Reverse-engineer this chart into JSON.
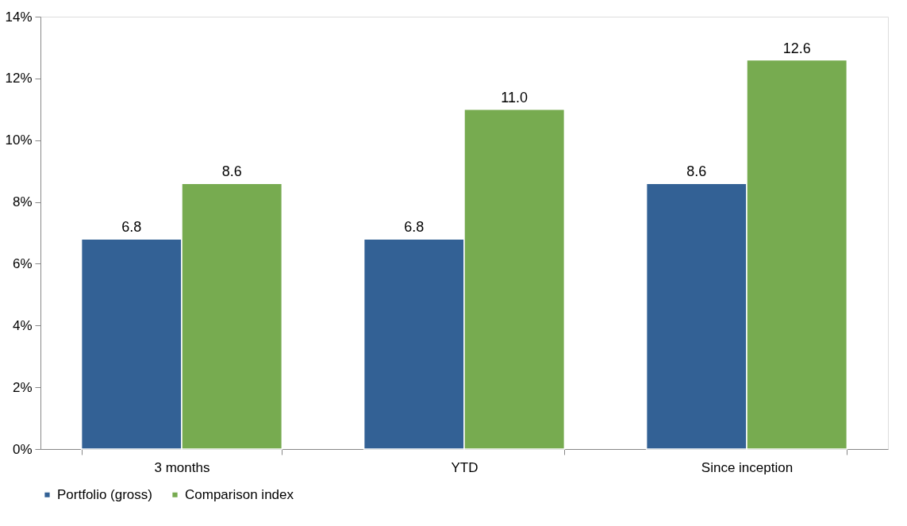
{
  "chart_data": {
    "type": "bar",
    "categories": [
      "3 months",
      "YTD",
      "Since inception"
    ],
    "series": [
      {
        "name": "Portfolio (gross)",
        "color": "#336195",
        "values": [
          6.8,
          6.8,
          8.6
        ],
        "value_labels": [
          "6.8",
          "6.8",
          "8.6"
        ]
      },
      {
        "name": "Comparison index",
        "color": "#77ab50",
        "values": [
          8.6,
          11.0,
          12.6
        ],
        "value_labels": [
          "8.6",
          "11.0",
          "12.6"
        ]
      }
    ],
    "ylim": [
      0,
      14
    ],
    "yticks": [
      {
        "value": 0,
        "label": "0%"
      },
      {
        "value": 2,
        "label": "2%"
      },
      {
        "value": 4,
        "label": "4%"
      },
      {
        "value": 6,
        "label": "6%"
      },
      {
        "value": 8,
        "label": "8%"
      },
      {
        "value": 10,
        "label": "10%"
      },
      {
        "value": 12,
        "label": "12%"
      },
      {
        "value": 14,
        "label": "14%"
      }
    ],
    "grid": false,
    "legend": "bottom"
  }
}
